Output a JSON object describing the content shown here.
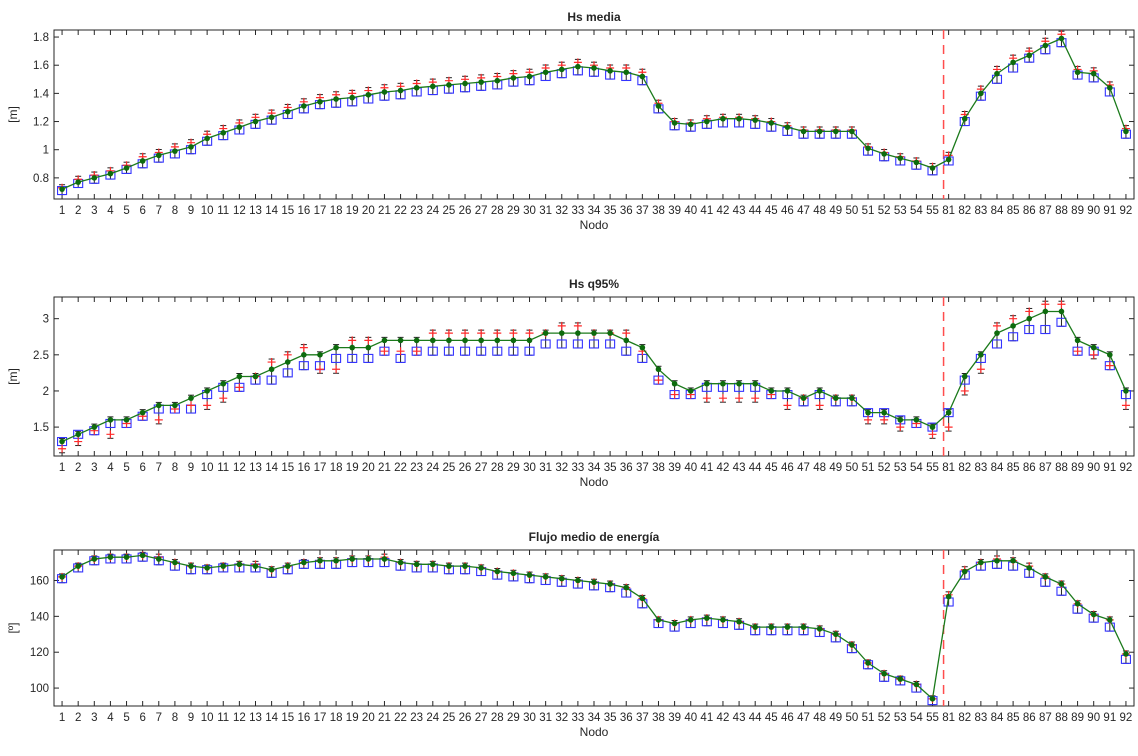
{
  "colors": {
    "line": "#1b7a1b",
    "marker": "#0d6b0d",
    "box": "#3333ff",
    "plus": "#ff2a2a",
    "whisker": "#222222",
    "divider": "#ff4d4d",
    "grid_tick": "#262626"
  },
  "chart_data": [
    {
      "type": "line",
      "title": "Hs media",
      "xlabel": "Nodo",
      "ylabel": "[m]",
      "ylim": [
        0.65,
        1.85
      ],
      "yticks": [
        0.8,
        1,
        1.2,
        1.4,
        1.6,
        1.8
      ],
      "categories": [
        "1",
        "2",
        "3",
        "4",
        "5",
        "6",
        "7",
        "8",
        "9",
        "10",
        "11",
        "12",
        "13",
        "14",
        "15",
        "16",
        "17",
        "18",
        "19",
        "20",
        "21",
        "22",
        "23",
        "24",
        "25",
        "26",
        "27",
        "28",
        "29",
        "30",
        "31",
        "32",
        "33",
        "34",
        "35",
        "36",
        "37",
        "38",
        "39",
        "40",
        "41",
        "42",
        "43",
        "44",
        "45",
        "46",
        "47",
        "48",
        "49",
        "50",
        "51",
        "52",
        "53",
        "54",
        "55",
        "81",
        "82",
        "83",
        "84",
        "85",
        "86",
        "87",
        "88",
        "89",
        "90",
        "91",
        "92"
      ],
      "divider_between": [
        "55",
        "81"
      ],
      "series": [
        {
          "kind": "line",
          "values": [
            0.72,
            0.77,
            0.8,
            0.83,
            0.87,
            0.92,
            0.96,
            0.99,
            1.02,
            1.08,
            1.12,
            1.16,
            1.2,
            1.23,
            1.27,
            1.31,
            1.34,
            1.36,
            1.37,
            1.39,
            1.41,
            1.42,
            1.44,
            1.45,
            1.46,
            1.47,
            1.48,
            1.49,
            1.51,
            1.52,
            1.55,
            1.57,
            1.59,
            1.58,
            1.56,
            1.55,
            1.52,
            1.31,
            1.19,
            1.18,
            1.2,
            1.22,
            1.22,
            1.21,
            1.19,
            1.16,
            1.13,
            1.13,
            1.13,
            1.13,
            1.01,
            0.97,
            0.94,
            0.91,
            0.87,
            0.93,
            1.22,
            1.4,
            1.54,
            1.62,
            1.67,
            1.74,
            1.79,
            1.55,
            1.54,
            1.44,
            1.13
          ]
        },
        {
          "kind": "box",
          "values": [
            0.71,
            0.76,
            0.79,
            0.82,
            0.86,
            0.9,
            0.94,
            0.97,
            1.0,
            1.06,
            1.1,
            1.14,
            1.18,
            1.21,
            1.25,
            1.29,
            1.32,
            1.33,
            1.34,
            1.36,
            1.38,
            1.39,
            1.41,
            1.42,
            1.43,
            1.44,
            1.45,
            1.46,
            1.48,
            1.49,
            1.52,
            1.54,
            1.56,
            1.55,
            1.53,
            1.52,
            1.49,
            1.29,
            1.17,
            1.16,
            1.18,
            1.19,
            1.19,
            1.18,
            1.16,
            1.13,
            1.11,
            1.11,
            1.11,
            1.11,
            0.99,
            0.95,
            0.92,
            0.89,
            0.85,
            0.92,
            1.2,
            1.38,
            1.5,
            1.58,
            1.65,
            1.71,
            1.76,
            1.53,
            1.51,
            1.41,
            1.11
          ]
        },
        {
          "kind": "plus",
          "values": [
            0.73,
            0.79,
            0.82,
            0.85,
            0.89,
            0.95,
            0.98,
            1.02,
            1.05,
            1.11,
            1.15,
            1.19,
            1.23,
            1.26,
            1.3,
            1.34,
            1.37,
            1.39,
            1.4,
            1.42,
            1.44,
            1.45,
            1.47,
            1.48,
            1.49,
            1.5,
            1.51,
            1.52,
            1.54,
            1.55,
            1.58,
            1.6,
            1.62,
            1.6,
            1.58,
            1.58,
            1.55,
            1.33,
            1.2,
            1.19,
            1.22,
            1.23,
            1.23,
            1.22,
            1.2,
            1.17,
            1.14,
            1.14,
            1.14,
            1.14,
            1.02,
            0.98,
            0.95,
            0.92,
            0.88,
            0.96,
            1.25,
            1.43,
            1.57,
            1.65,
            1.7,
            1.77,
            1.82,
            1.57,
            1.56,
            1.46,
            1.15
          ]
        }
      ]
    },
    {
      "type": "line",
      "title": "Hs q95%",
      "xlabel": "Nodo",
      "ylabel": "[m]",
      "ylim": [
        1.1,
        3.3
      ],
      "yticks": [
        1.5,
        2,
        2.5,
        3
      ],
      "categories": [
        "1",
        "2",
        "3",
        "4",
        "5",
        "6",
        "7",
        "8",
        "9",
        "10",
        "11",
        "12",
        "13",
        "14",
        "15",
        "16",
        "17",
        "18",
        "19",
        "20",
        "21",
        "22",
        "23",
        "24",
        "25",
        "26",
        "27",
        "28",
        "29",
        "30",
        "31",
        "32",
        "33",
        "34",
        "35",
        "36",
        "37",
        "38",
        "39",
        "40",
        "41",
        "42",
        "43",
        "44",
        "45",
        "46",
        "47",
        "48",
        "49",
        "50",
        "51",
        "52",
        "53",
        "54",
        "55",
        "81",
        "82",
        "83",
        "84",
        "85",
        "86",
        "87",
        "88",
        "89",
        "90",
        "91",
        "92"
      ],
      "divider_between": [
        "55",
        "81"
      ],
      "series": [
        {
          "kind": "line",
          "values": [
            1.3,
            1.4,
            1.5,
            1.6,
            1.6,
            1.7,
            1.8,
            1.8,
            1.9,
            2.0,
            2.1,
            2.2,
            2.2,
            2.3,
            2.4,
            2.5,
            2.5,
            2.6,
            2.6,
            2.6,
            2.7,
            2.7,
            2.7,
            2.7,
            2.7,
            2.7,
            2.7,
            2.7,
            2.7,
            2.7,
            2.8,
            2.8,
            2.8,
            2.8,
            2.8,
            2.7,
            2.6,
            2.3,
            2.1,
            2.0,
            2.1,
            2.1,
            2.1,
            2.1,
            2.0,
            2.0,
            1.9,
            2.0,
            1.9,
            1.9,
            1.7,
            1.7,
            1.6,
            1.6,
            1.5,
            1.7,
            2.2,
            2.5,
            2.8,
            2.9,
            3.0,
            3.1,
            3.1,
            2.7,
            2.6,
            2.5,
            2.0
          ]
        },
        {
          "kind": "box",
          "values": [
            1.3,
            1.4,
            1.45,
            1.55,
            1.55,
            1.65,
            1.75,
            1.75,
            1.75,
            1.95,
            2.05,
            2.05,
            2.15,
            2.15,
            2.25,
            2.35,
            2.35,
            2.45,
            2.45,
            2.45,
            2.55,
            2.45,
            2.55,
            2.55,
            2.55,
            2.55,
            2.55,
            2.55,
            2.55,
            2.55,
            2.65,
            2.65,
            2.65,
            2.65,
            2.65,
            2.55,
            2.45,
            2.15,
            1.95,
            1.95,
            2.05,
            2.05,
            2.05,
            2.05,
            1.95,
            1.95,
            1.85,
            1.95,
            1.85,
            1.85,
            1.7,
            1.7,
            1.6,
            1.55,
            1.5,
            1.7,
            2.15,
            2.45,
            2.65,
            2.75,
            2.85,
            2.85,
            2.95,
            2.55,
            2.55,
            2.35,
            1.95
          ]
        },
        {
          "kind": "plus",
          "values": [
            1.2,
            1.3,
            1.45,
            1.4,
            1.55,
            1.65,
            1.6,
            1.75,
            1.8,
            1.8,
            1.9,
            2.05,
            2.2,
            2.4,
            2.5,
            2.6,
            2.3,
            2.3,
            2.7,
            2.7,
            2.55,
            2.55,
            2.55,
            2.8,
            2.8,
            2.8,
            2.8,
            2.8,
            2.8,
            2.8,
            2.8,
            2.9,
            2.9,
            2.8,
            2.8,
            2.8,
            2.55,
            2.15,
            1.95,
            1.95,
            1.9,
            1.9,
            1.9,
            1.9,
            1.95,
            1.8,
            1.9,
            1.8,
            1.9,
            1.9,
            1.6,
            1.6,
            1.5,
            1.55,
            1.4,
            1.5,
            2.0,
            2.3,
            2.9,
            3.0,
            3.1,
            3.2,
            3.2,
            2.55,
            2.5,
            2.35,
            1.8
          ]
        }
      ]
    },
    {
      "type": "line",
      "title": "Flujo medio de energía",
      "xlabel": "Nodo",
      "ylabel": "[º]",
      "ylim": [
        90,
        177
      ],
      "yticks": [
        100,
        120,
        140,
        160
      ],
      "categories": [
        "1",
        "2",
        "3",
        "4",
        "5",
        "6",
        "7",
        "8",
        "9",
        "10",
        "11",
        "12",
        "13",
        "14",
        "15",
        "16",
        "17",
        "18",
        "19",
        "20",
        "21",
        "22",
        "23",
        "24",
        "25",
        "26",
        "27",
        "28",
        "29",
        "30",
        "31",
        "32",
        "33",
        "34",
        "35",
        "36",
        "37",
        "38",
        "39",
        "40",
        "41",
        "42",
        "43",
        "44",
        "45",
        "46",
        "47",
        "48",
        "49",
        "50",
        "51",
        "52",
        "53",
        "54",
        "55",
        "81",
        "82",
        "83",
        "84",
        "85",
        "86",
        "87",
        "88",
        "89",
        "90",
        "91",
        "92"
      ],
      "divider_between": [
        "55",
        "81"
      ],
      "series": [
        {
          "kind": "line",
          "values": [
            162,
            168,
            172,
            173,
            173,
            174,
            172,
            170,
            168,
            167,
            168,
            169,
            168,
            166,
            168,
            170,
            171,
            171,
            172,
            172,
            172,
            170,
            169,
            169,
            168,
            168,
            167,
            165,
            164,
            163,
            162,
            161,
            160,
            159,
            158,
            156,
            150,
            138,
            136,
            138,
            139,
            138,
            137,
            134,
            134,
            134,
            134,
            133,
            130,
            124,
            114,
            108,
            105,
            102,
            94,
            151,
            165,
            170,
            171,
            171,
            167,
            162,
            158,
            147,
            141,
            138,
            119
          ]
        },
        {
          "kind": "box",
          "values": [
            161,
            167,
            171,
            172,
            172,
            173,
            171,
            168,
            166,
            166,
            167,
            167,
            167,
            164,
            166,
            169,
            169,
            169,
            170,
            170,
            170,
            168,
            167,
            167,
            166,
            166,
            165,
            163,
            162,
            161,
            160,
            159,
            158,
            157,
            156,
            153,
            147,
            136,
            134,
            136,
            137,
            136,
            135,
            132,
            132,
            132,
            132,
            131,
            128,
            122,
            113,
            106,
            104,
            100,
            93,
            148,
            163,
            168,
            169,
            168,
            164,
            159,
            154,
            144,
            139,
            134,
            116
          ]
        },
        {
          "kind": "plus",
          "values": [
            162,
            168,
            172,
            173,
            173,
            174,
            173,
            170,
            168,
            167,
            168,
            169,
            169,
            166,
            168,
            170,
            171,
            171,
            172,
            172,
            173,
            170,
            169,
            169,
            168,
            168,
            167,
            165,
            164,
            163,
            162,
            161,
            160,
            159,
            158,
            156,
            150,
            138,
            136,
            138,
            139,
            138,
            137,
            134,
            134,
            134,
            134,
            133,
            130,
            124,
            114,
            108,
            105,
            102,
            94,
            152,
            166,
            170,
            172,
            171,
            168,
            162,
            158,
            147,
            141,
            138,
            119
          ]
        }
      ]
    }
  ]
}
